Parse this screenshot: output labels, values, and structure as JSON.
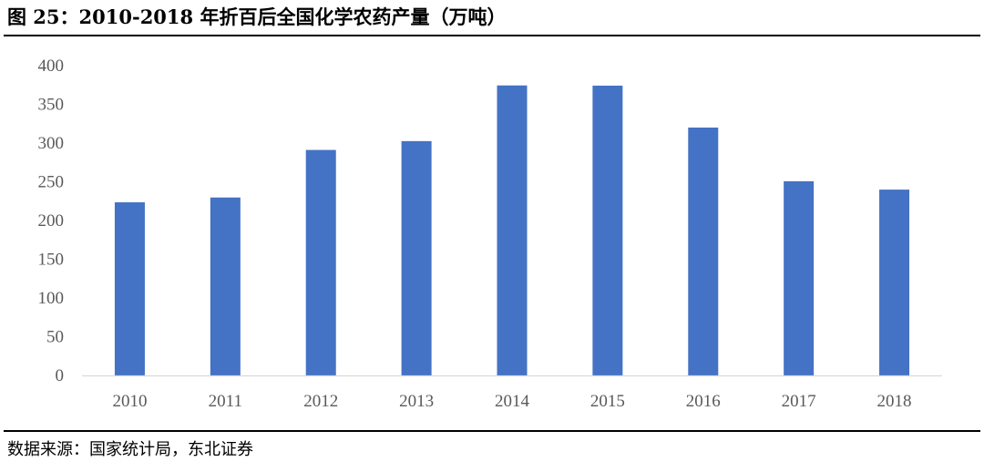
{
  "figure": {
    "title": "图 25：2010-2018 年折百后全国化学农药产量（万吨）",
    "source": "数据来源：国家统计局，东北证券"
  },
  "chart_data": {
    "type": "bar",
    "categories": [
      "2010",
      "2011",
      "2012",
      "2013",
      "2014",
      "2015",
      "2016",
      "2017",
      "2018"
    ],
    "series": [
      {
        "values": [
          223.5,
          229.7,
          291.1,
          302.5,
          374.4,
          374.1,
          320.0,
          250.7,
          239.9
        ]
      }
    ],
    "ylim": [
      0,
      400
    ],
    "yticks": [
      "0",
      "50",
      "100",
      "150",
      "200",
      "250",
      "300",
      "350",
      "400"
    ],
    "grid": false,
    "bar_color": "#4472C4",
    "axis_color": "#D9D9D9"
  }
}
